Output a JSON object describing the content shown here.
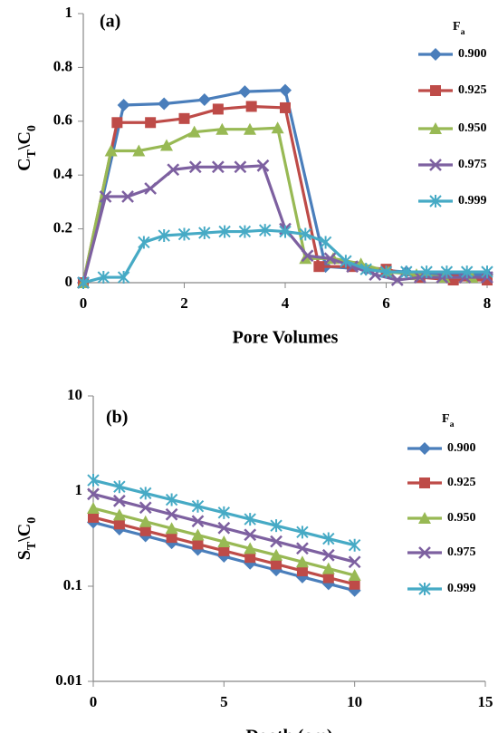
{
  "chart_data": [
    {
      "type": "line",
      "panel_label": "(a)",
      "y_label": [
        "C",
        "T",
        "\\C",
        "0"
      ],
      "x_label": "Pore Volumes",
      "legend_title": [
        "F",
        "a"
      ],
      "legend": "right",
      "xlim": [
        0,
        8
      ],
      "xticks": [
        0,
        2,
        4,
        6,
        8
      ],
      "ylim": [
        0,
        1
      ],
      "yticks": [
        0,
        0.2,
        0.4,
        0.6,
        0.8,
        1
      ],
      "log_y": false,
      "grid": false,
      "series": [
        {
          "name": "0.900",
          "color": "#4a7ebb",
          "marker": "diamond",
          "x": [
            0,
            0.8,
            1.6,
            2.4,
            3.2,
            4.0,
            4.8,
            5.6,
            6.4,
            7.2,
            8.0
          ],
          "values": [
            0,
            0.66,
            0.665,
            0.68,
            0.71,
            0.715,
            0.06,
            0.05,
            0.04,
            0.03,
            0.03
          ]
        },
        {
          "name": "0.925",
          "color": "#be4b48",
          "marker": "square",
          "x": [
            0,
            0.67,
            1.33,
            2.0,
            2.67,
            3.33,
            4.0,
            4.67,
            5.33,
            6.0,
            6.67,
            7.33,
            8.0
          ],
          "values": [
            0,
            0.595,
            0.595,
            0.61,
            0.645,
            0.655,
            0.65,
            0.06,
            0.06,
            0.05,
            0.02,
            0.01,
            0.01
          ]
        },
        {
          "name": "0.950",
          "color": "#98b954",
          "marker": "triangle",
          "x": [
            0,
            0.55,
            1.1,
            1.65,
            2.2,
            2.75,
            3.3,
            3.85,
            4.4,
            4.95,
            5.5,
            6.05,
            6.6,
            7.15,
            7.7
          ],
          "values": [
            0,
            0.49,
            0.49,
            0.51,
            0.56,
            0.57,
            0.57,
            0.575,
            0.09,
            0.09,
            0.07,
            0.04,
            0.03,
            0.02,
            0.02
          ]
        },
        {
          "name": "0.975",
          "color": "#7d60a0",
          "marker": "x",
          "x": [
            0,
            0.44,
            0.88,
            1.33,
            1.78,
            2.22,
            2.67,
            3.11,
            3.56,
            4.0,
            4.44,
            4.89,
            5.33,
            5.78,
            6.22,
            6.67,
            7.11,
            7.56,
            8.0
          ],
          "values": [
            0,
            0.32,
            0.32,
            0.35,
            0.42,
            0.43,
            0.43,
            0.43,
            0.435,
            0.2,
            0.1,
            0.09,
            0.06,
            0.03,
            0.01,
            0.02,
            0.02,
            0.02,
            0.02
          ]
        },
        {
          "name": "0.999",
          "color": "#46aac5",
          "marker": "star",
          "x": [
            0,
            0.4,
            0.8,
            1.2,
            1.6,
            2.0,
            2.4,
            2.8,
            3.2,
            3.6,
            4.0,
            4.4,
            4.8,
            5.2,
            5.6,
            6.0,
            6.4,
            6.8,
            7.2,
            7.6,
            8.0
          ],
          "values": [
            0,
            0.02,
            0.02,
            0.15,
            0.175,
            0.18,
            0.185,
            0.19,
            0.19,
            0.195,
            0.19,
            0.18,
            0.15,
            0.08,
            0.05,
            0.04,
            0.04,
            0.04,
            0.04,
            0.04,
            0.04
          ]
        }
      ]
    },
    {
      "type": "line",
      "panel_label": "(b)",
      "y_label": [
        "S",
        "T",
        "\\C",
        "0"
      ],
      "x_label": "Depth (cm)",
      "legend_title": [
        "F",
        "a"
      ],
      "legend": "right",
      "xlim": [
        0,
        15
      ],
      "xticks": [
        0,
        5,
        10,
        15
      ],
      "ylim": [
        0.01,
        10
      ],
      "yticks": [
        0.01,
        0.1,
        1,
        10
      ],
      "log_y": true,
      "grid": false,
      "series": [
        {
          "name": "0.900",
          "color": "#4a7ebb",
          "marker": "diamond",
          "x": [
            0,
            1,
            2,
            3,
            4,
            5,
            6,
            7,
            8,
            9,
            10
          ],
          "values": [
            0.47,
            0.398,
            0.338,
            0.286,
            0.243,
            0.206,
            0.174,
            0.148,
            0.125,
            0.106,
            0.09
          ]
        },
        {
          "name": "0.925",
          "color": "#be4b48",
          "marker": "square",
          "x": [
            0,
            1,
            2,
            3,
            4,
            5,
            6,
            7,
            8,
            9,
            10
          ],
          "values": [
            0.53,
            0.451,
            0.383,
            0.326,
            0.277,
            0.236,
            0.201,
            0.171,
            0.145,
            0.123,
            0.105
          ]
        },
        {
          "name": "0.950",
          "color": "#98b954",
          "marker": "triangle",
          "x": [
            0,
            1,
            2,
            3,
            4,
            5,
            6,
            7,
            8,
            9,
            10
          ],
          "values": [
            0.66,
            0.561,
            0.477,
            0.405,
            0.345,
            0.293,
            0.249,
            0.212,
            0.18,
            0.153,
            0.13
          ]
        },
        {
          "name": "0.975",
          "color": "#7d60a0",
          "marker": "x",
          "x": [
            0,
            1,
            2,
            3,
            4,
            5,
            6,
            7,
            8,
            9,
            10
          ],
          "values": [
            0.93,
            0.789,
            0.67,
            0.568,
            0.482,
            0.409,
            0.347,
            0.295,
            0.25,
            0.212,
            0.18
          ]
        },
        {
          "name": "0.999",
          "color": "#46aac5",
          "marker": "star",
          "x": [
            0,
            1,
            2,
            3,
            4,
            5,
            6,
            7,
            8,
            9,
            10
          ],
          "values": [
            1.3,
            1.111,
            0.949,
            0.811,
            0.693,
            0.593,
            0.506,
            0.433,
            0.37,
            0.316,
            0.27
          ]
        }
      ]
    }
  ]
}
